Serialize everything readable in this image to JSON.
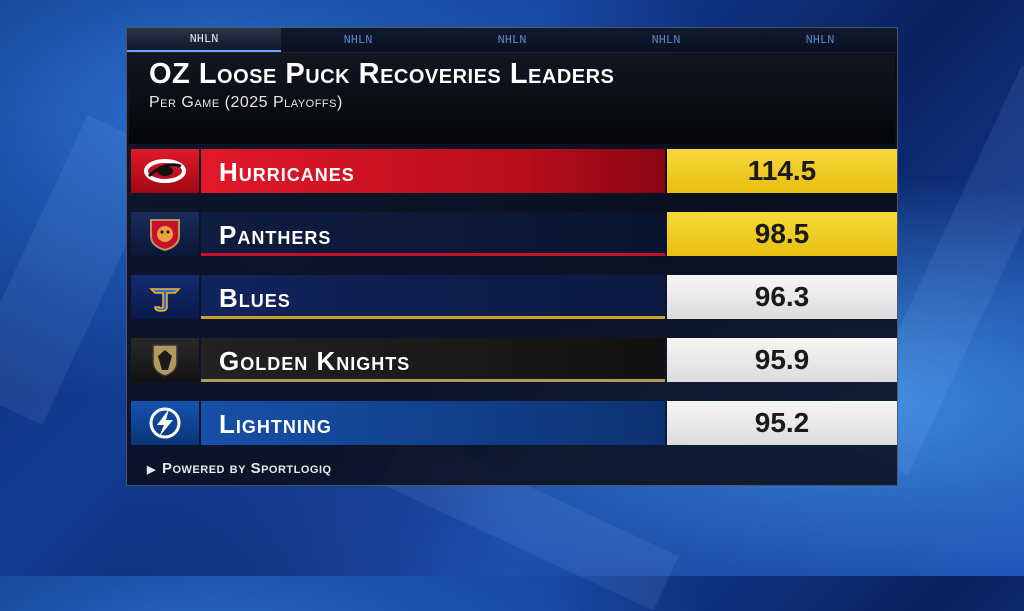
{
  "tabs": [
    "NHLN",
    "NHLN",
    "NHLN",
    "NHLN",
    "NHLN"
  ],
  "title": "OZ Loose Puck Recoveries Leaders",
  "subtitle": "Per Game (2025 Playoffs)",
  "colors": {
    "highlight_value": "#f2cc1e",
    "normal_value": "#ececec",
    "hurricanes": "#d01020",
    "panthers": "#0c1f4a",
    "blues": "#0d2266",
    "golden_knights": "#1c1c1c",
    "lightning": "#0d3a8c"
  },
  "rows": [
    {
      "team": "Hurricanes",
      "value": "114.5",
      "icon": "hurricanes-logo-icon"
    },
    {
      "team": "Panthers",
      "value": "98.5",
      "icon": "panthers-logo-icon"
    },
    {
      "team": "Blues",
      "value": "96.3",
      "icon": "blues-logo-icon"
    },
    {
      "team": "Golden Knights",
      "value": "95.9",
      "icon": "golden-knights-logo-icon"
    },
    {
      "team": "Lightning",
      "value": "95.2",
      "icon": "lightning-logo-icon"
    }
  ],
  "footer": "Powered by Sportlogiq"
}
